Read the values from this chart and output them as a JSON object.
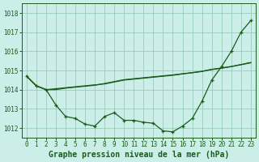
{
  "background_color": "#cceee8",
  "grid_color": "#99ccbb",
  "line_color": "#1a5c1a",
  "title": "Graphe pression niveau de la mer (hPa)",
  "xlim": [
    -0.5,
    23.5
  ],
  "ylim": [
    1011.5,
    1018.5
  ],
  "yticks": [
    1012,
    1013,
    1014,
    1015,
    1016,
    1017,
    1018
  ],
  "xticks": [
    0,
    1,
    2,
    3,
    4,
    5,
    6,
    7,
    8,
    9,
    10,
    11,
    12,
    13,
    14,
    15,
    16,
    17,
    18,
    19,
    20,
    21,
    22,
    23
  ],
  "s1": [
    1014.7,
    1014.2,
    1014.0,
    1013.2,
    1012.6,
    1012.5,
    1012.2,
    1012.1,
    1012.6,
    1012.8,
    1012.4,
    1012.4,
    1012.3,
    1012.25,
    1011.85,
    1011.8,
    1012.1,
    1012.5,
    1013.4,
    1014.5,
    1015.2,
    1016.0,
    1017.0,
    1017.6
  ],
  "s2": [
    1014.7,
    1014.2,
    1014.0,
    1014.05,
    1014.1,
    1014.15,
    1014.2,
    1014.25,
    1014.3,
    1014.4,
    1014.5,
    1014.55,
    1014.6,
    1014.65,
    1014.7,
    1014.75,
    1014.82,
    1014.88,
    1014.95,
    1015.05,
    1015.12,
    1015.2,
    1015.3,
    1015.4
  ],
  "s3": [
    1014.7,
    1014.2,
    1014.0,
    1014.0,
    1014.08,
    1014.13,
    1014.18,
    1014.23,
    1014.32,
    1014.42,
    1014.52,
    1014.57,
    1014.62,
    1014.67,
    1014.72,
    1014.77,
    1014.83,
    1014.89,
    1014.96,
    1015.06,
    1015.13,
    1015.21,
    1015.31,
    1015.42
  ],
  "title_fontsize": 7,
  "tick_fontsize": 5.5
}
